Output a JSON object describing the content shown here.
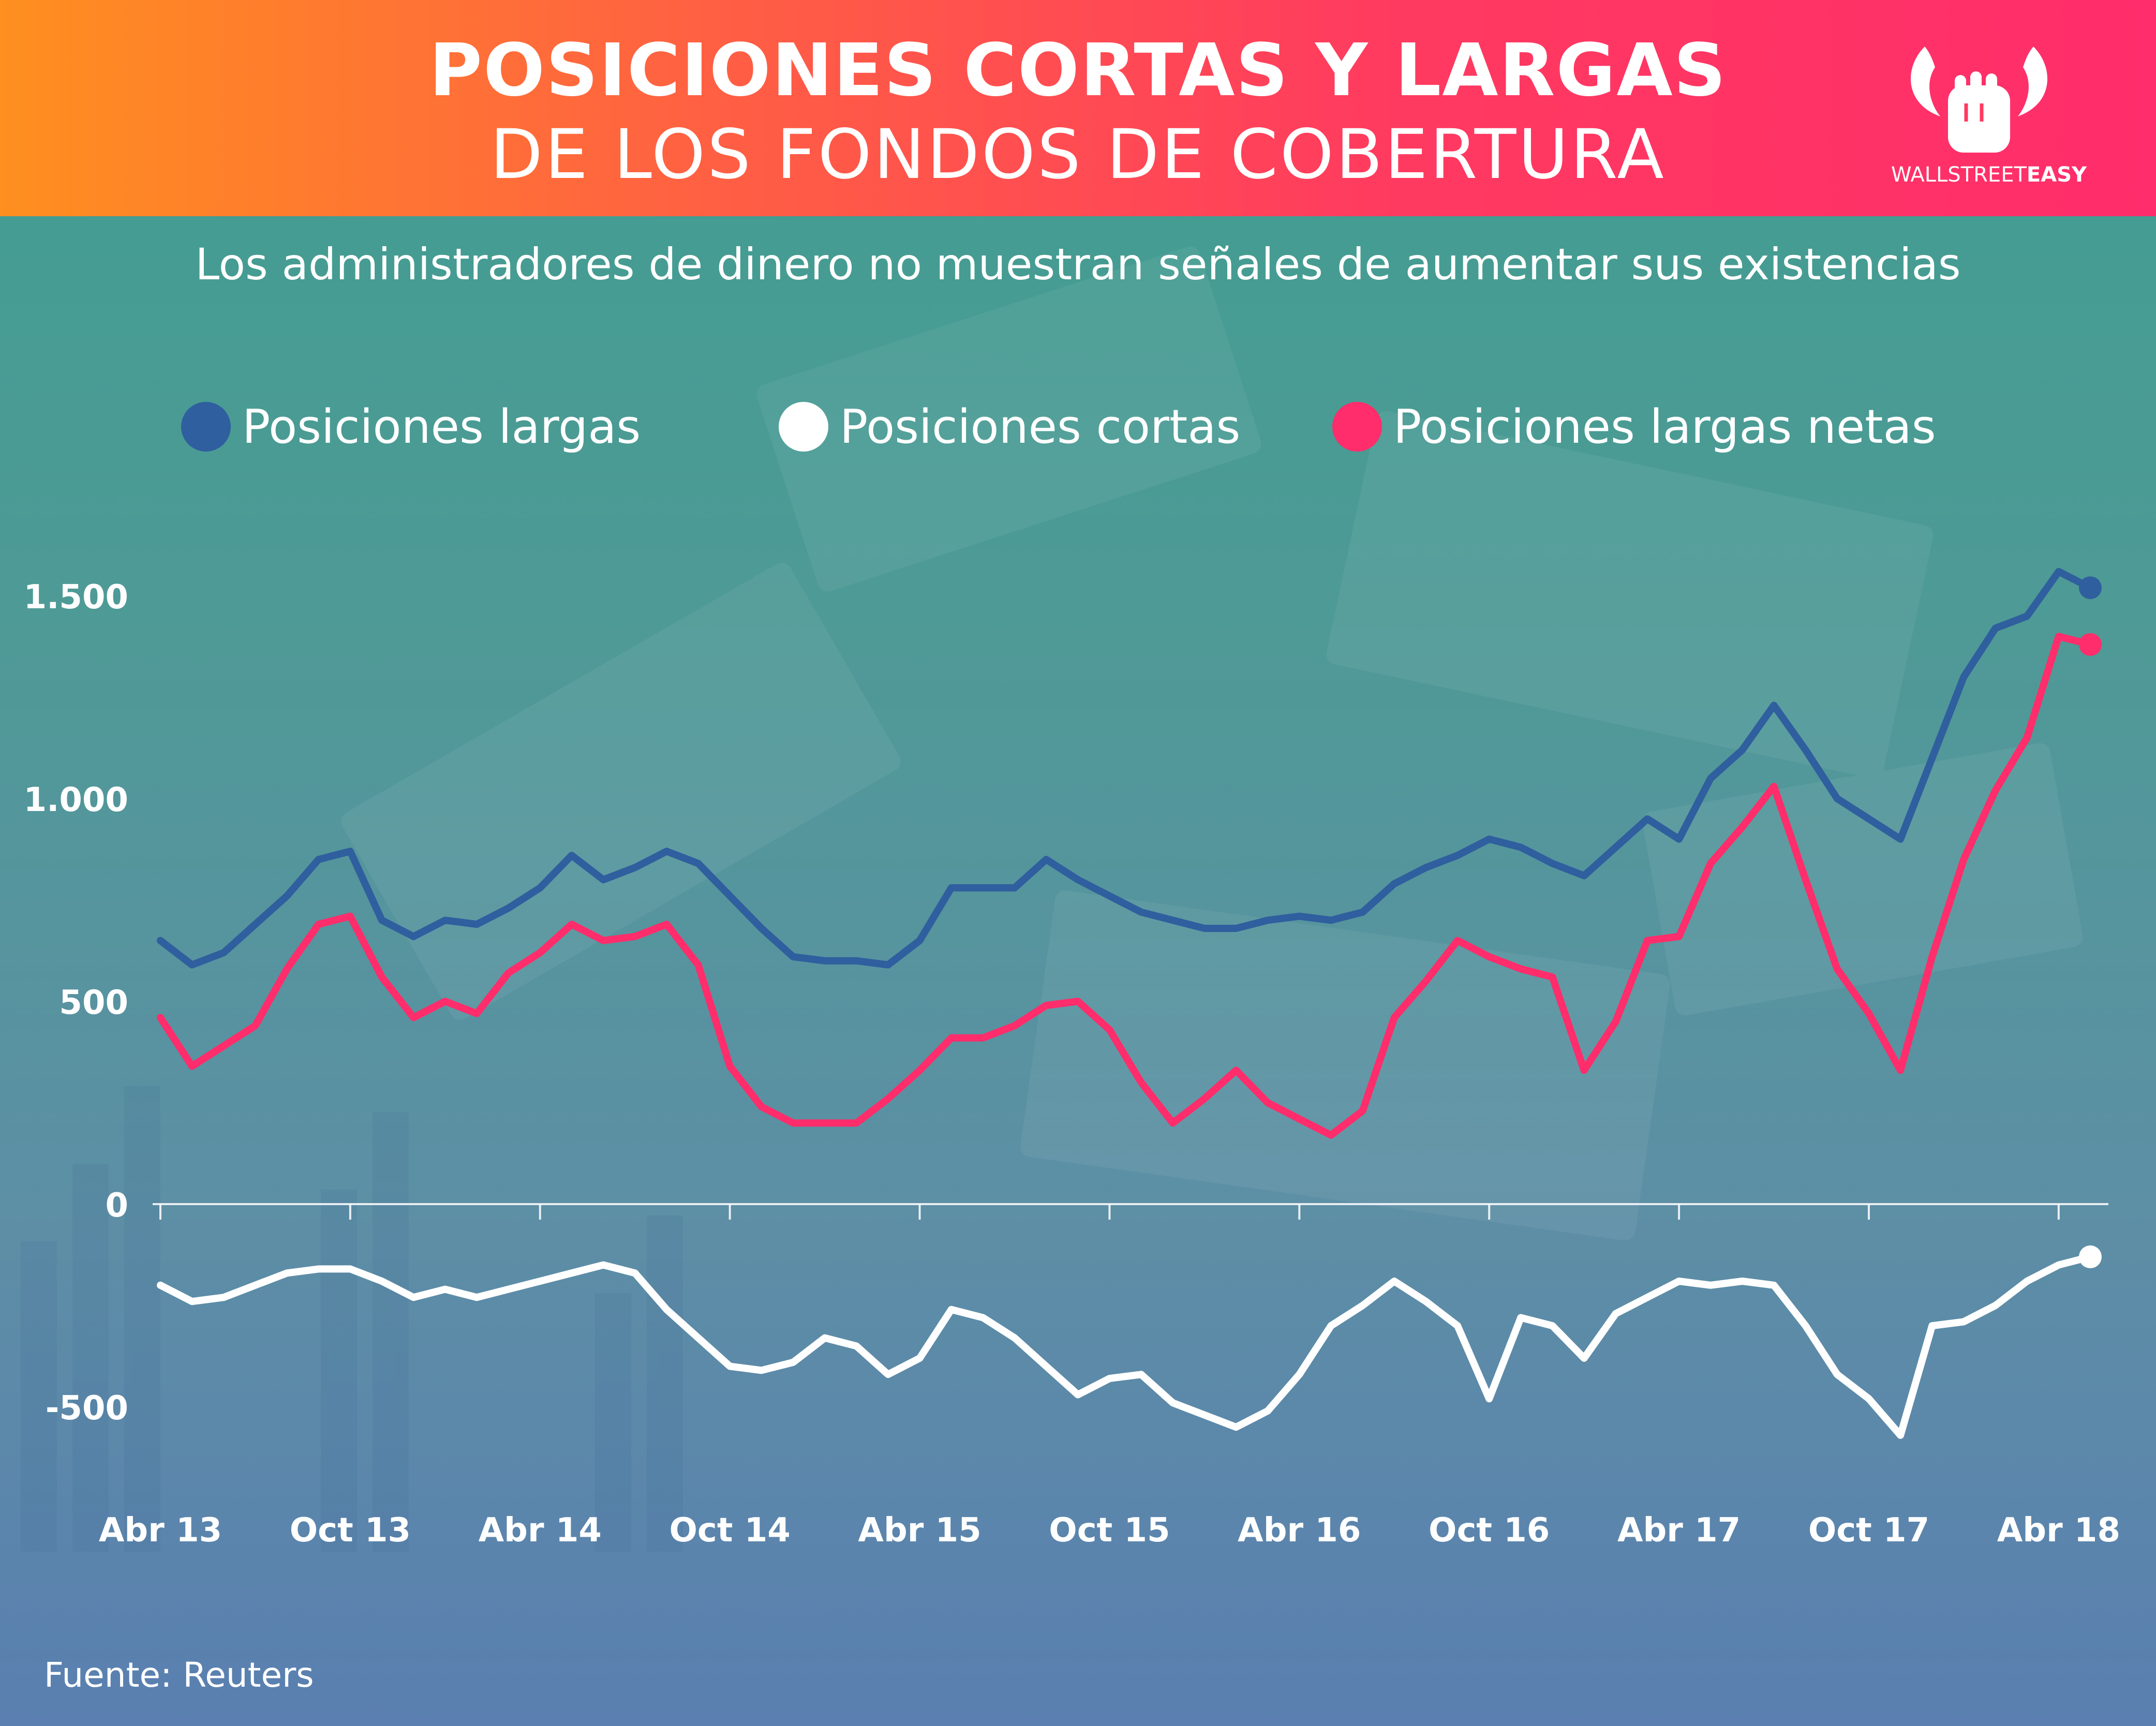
{
  "header": {
    "title_line1": "POSICIONES CORTAS Y LARGAS",
    "title_line2": "DE LOS FONDOS DE COBERTURA",
    "logo_text_regular": "WALLSTREET",
    "logo_text_bold": "EASY",
    "logo_icon": "bull-horns-fist-icon"
  },
  "subtitle": "Los administradores de dinero no muestran señales de aumentar sus existencias",
  "source": "Fuente: Reuters",
  "colors": {
    "header_start": "#ff8f1f",
    "header_end": "#ff2d6b",
    "long": "#2f5f9e",
    "short": "#ffffff",
    "net": "#ff2d6b"
  },
  "chart_data": {
    "type": "line",
    "title": "",
    "xlabel": "",
    "ylabel": "",
    "ylim": [
      -700,
      1700
    ],
    "x_ticks": [
      "Abr 13",
      "Oct 13",
      "Abr 14",
      "Oct 14",
      "Abr 15",
      "Oct 15",
      "Abr 16",
      "Oct 16",
      "Abr 17",
      "Oct 17",
      "Abr 18"
    ],
    "y_ticks": [
      {
        "value": 1500,
        "label": "1.500"
      },
      {
        "value": 1000,
        "label": "1.000"
      },
      {
        "value": 500,
        "label": "500"
      },
      {
        "value": 0,
        "label": "0"
      },
      {
        "value": -500,
        "label": "-500"
      }
    ],
    "grid": false,
    "legend_position": "top",
    "x_months": [
      0,
      1,
      2,
      3,
      4,
      5,
      6,
      7,
      8,
      9,
      10,
      11,
      12,
      13,
      14,
      15,
      16,
      17,
      18,
      19,
      20,
      21,
      22,
      23,
      24,
      25,
      26,
      27,
      28,
      29,
      30,
      31,
      32,
      33,
      34,
      35,
      36,
      37,
      38,
      39,
      40,
      41,
      42,
      43,
      44,
      45,
      46,
      47,
      48,
      49,
      50,
      51,
      52,
      53,
      54,
      55,
      56,
      57,
      58,
      59,
      60,
      61
    ],
    "series": [
      {
        "name": "Posiciones largas",
        "color": "#2f5f9e",
        "values": [
          650,
          590,
          620,
          690,
          760,
          850,
          870,
          700,
          660,
          700,
          690,
          730,
          780,
          860,
          800,
          830,
          870,
          840,
          760,
          680,
          610,
          600,
          600,
          590,
          650,
          780,
          780,
          780,
          850,
          800,
          760,
          720,
          700,
          680,
          680,
          700,
          710,
          700,
          720,
          790,
          830,
          860,
          900,
          880,
          840,
          810,
          880,
          950,
          900,
          1050,
          1120,
          1230,
          1120,
          1000,
          950,
          900,
          1100,
          1300,
          1420,
          1450,
          1560,
          1520
        ]
      },
      {
        "name": "Posiciones cortas",
        "color": "#ffffff",
        "values": [
          -200,
          -240,
          -230,
          -200,
          -170,
          -160,
          -160,
          -190,
          -230,
          -210,
          -230,
          -210,
          -190,
          -170,
          -150,
          -170,
          -260,
          -330,
          -400,
          -410,
          -390,
          -330,
          -350,
          -420,
          -380,
          -260,
          -280,
          -330,
          -400,
          -470,
          -430,
          -420,
          -490,
          -520,
          -550,
          -510,
          -420,
          -300,
          -250,
          -190,
          -240,
          -300,
          -480,
          -280,
          -300,
          -380,
          -270,
          -230,
          -190,
          -200,
          -190,
          -200,
          -300,
          -420,
          -480,
          -570,
          -300,
          -290,
          -250,
          -190,
          -150,
          -130
        ]
      },
      {
        "name": "Posiciones largas netas",
        "color": "#ff2d6b",
        "values": [
          460,
          340,
          390,
          440,
          580,
          690,
          710,
          560,
          460,
          500,
          470,
          570,
          620,
          690,
          650,
          660,
          690,
          590,
          340,
          240,
          200,
          200,
          200,
          260,
          330,
          410,
          410,
          440,
          490,
          500,
          430,
          300,
          200,
          260,
          330,
          250,
          210,
          170,
          230,
          460,
          550,
          650,
          610,
          580,
          560,
          330,
          450,
          650,
          660,
          840,
          930,
          1030,
          800,
          580,
          470,
          330,
          610,
          850,
          1020,
          1150,
          1400,
          1380
        ]
      }
    ]
  }
}
